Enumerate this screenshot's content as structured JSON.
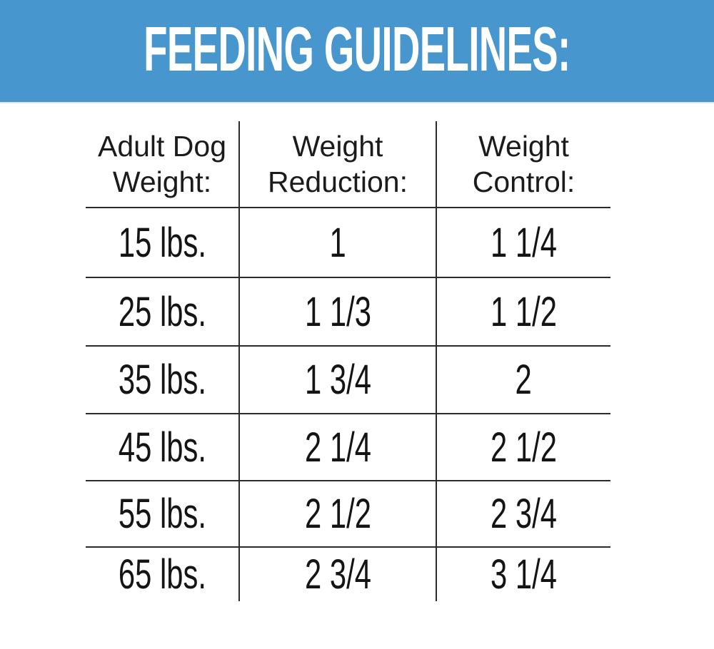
{
  "banner": {
    "title": "FEEDING GUIDELINES:",
    "bg_color": "#4896ce",
    "text_color": "#ffffff"
  },
  "table": {
    "line_color": "#2b2b2b",
    "text_color": "#141414",
    "headers": [
      {
        "line1": "Adult Dog",
        "line2": "Weight:"
      },
      {
        "line1": "Weight",
        "line2": "Reduction:"
      },
      {
        "line1": "Weight",
        "line2": "Control:"
      }
    ],
    "rows": [
      {
        "weight": "15 lbs.",
        "reduction": "1",
        "control": "1 1/4"
      },
      {
        "weight": "25 lbs.",
        "reduction": "1 1/3",
        "control": "1 1/2"
      },
      {
        "weight": "35 lbs.",
        "reduction": "1 3/4",
        "control": "2"
      },
      {
        "weight": "45 lbs.",
        "reduction": "2 1/4",
        "control": "2 1/2"
      },
      {
        "weight": "55 lbs.",
        "reduction": "2 1/2",
        "control": "2 3/4"
      },
      {
        "weight": "65 lbs.",
        "reduction": "2 3/4",
        "control": "3 1/4"
      }
    ]
  }
}
